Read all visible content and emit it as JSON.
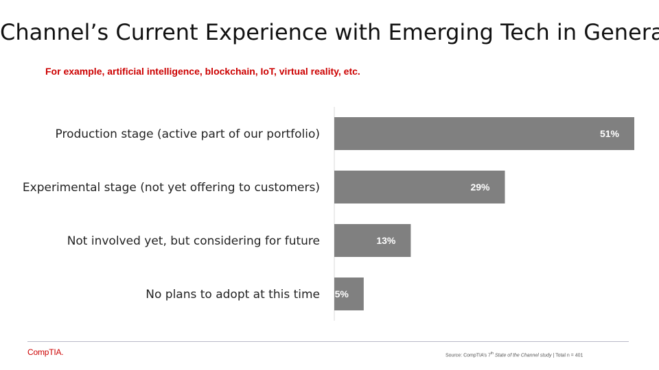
{
  "colors": {
    "bar": "#808080",
    "accent": "#cc0000",
    "label": "#222222",
    "value": "#ffffff",
    "axis": "#d9d9d9"
  },
  "chart_data": {
    "type": "bar",
    "orientation": "horizontal",
    "title": "Channel’s Current Experience with Emerging Tech in General",
    "subtitle": "For example, artificial intelligence, blockchain, IoT, virtual reality, etc.",
    "categories": [
      "Production stage (active part of our portfolio)",
      "Experimental stage (not yet offering to customers)",
      "Not involved yet, but considering for future",
      "No plans to adopt at this time"
    ],
    "values": [
      51,
      29,
      13,
      5
    ],
    "value_labels": [
      "51%",
      "29%",
      "13%",
      "5%"
    ],
    "unit": "%",
    "xlim": [
      0,
      51
    ],
    "grid": false,
    "legend": "none"
  },
  "footer": {
    "logo": "CompTIA.",
    "source_prefix": "Source: CompTIA’s 7",
    "source_sup": "th",
    "source_study": "State of the Channel study",
    "source_suffix": " | Total n = 401"
  }
}
